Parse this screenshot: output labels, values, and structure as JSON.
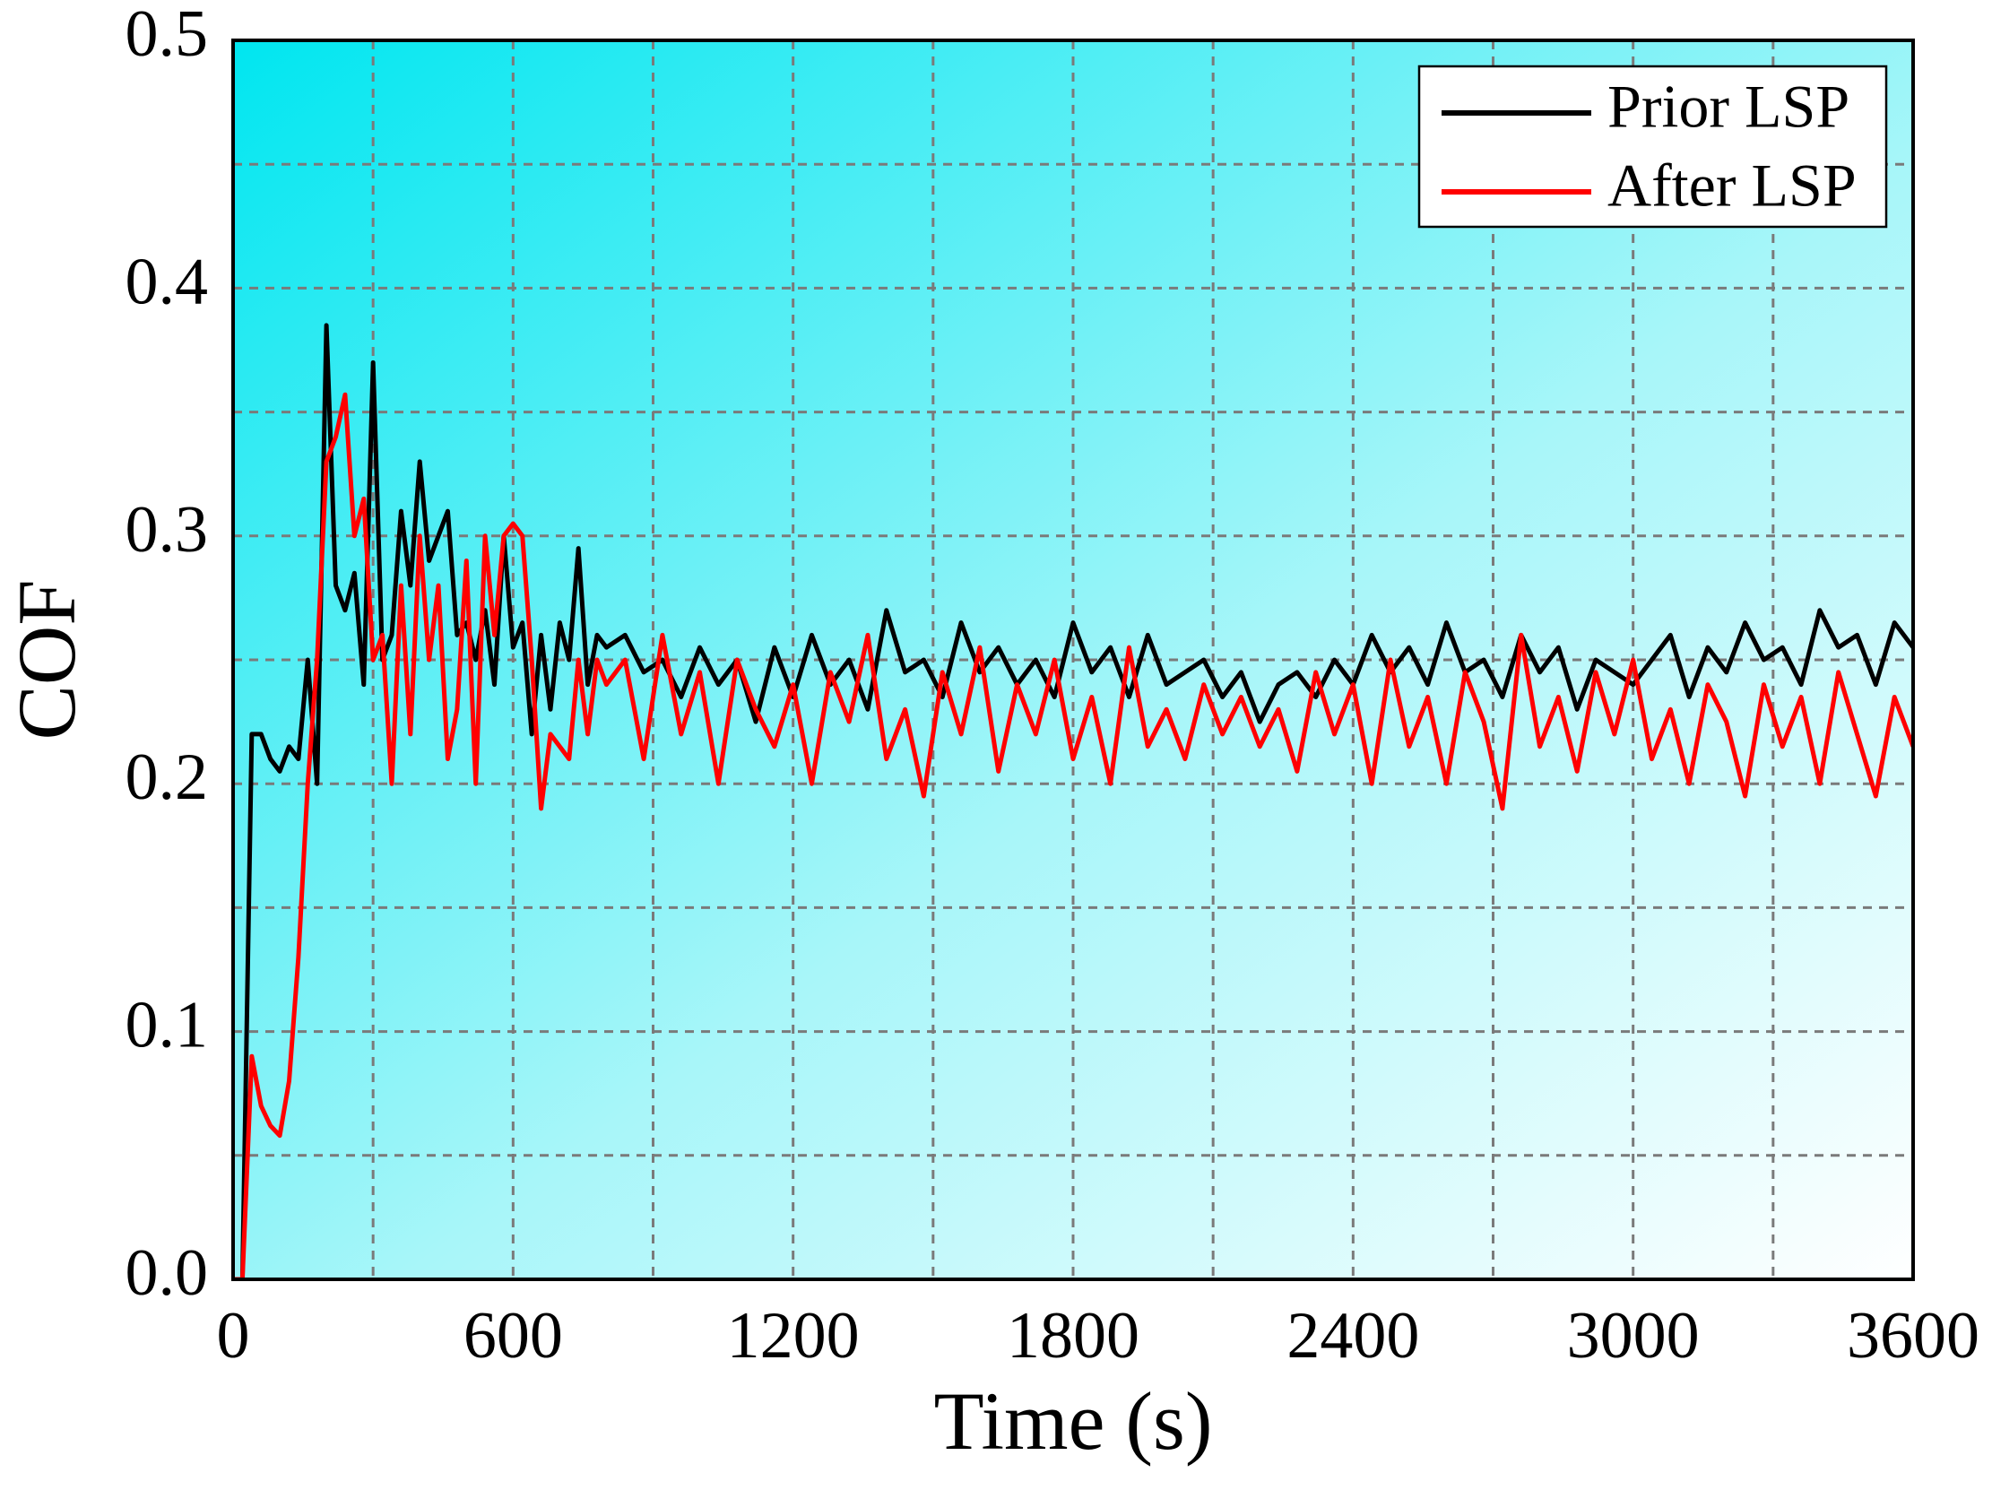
{
  "chart_data": {
    "type": "line",
    "x_label": "Time (s)",
    "y_label": "COF",
    "xlim": [
      0,
      3600
    ],
    "xticks": [
      0,
      600,
      1200,
      1800,
      2400,
      3000,
      3600
    ],
    "x_minor_ticks": [
      300,
      900,
      1500,
      2100,
      2700,
      3300
    ],
    "ylim": [
      0,
      0.5
    ],
    "yticks": [
      {
        "value": 0,
        "label": "0.0"
      },
      0.1,
      0.2,
      0.3,
      0.4,
      0.5
    ],
    "y_minor_ticks": [
      0.05,
      0.15,
      0.25,
      0.35,
      0.45
    ],
    "grid": true,
    "legend": "upper right",
    "x": [
      0,
      20,
      40,
      60,
      80,
      100,
      120,
      140,
      160,
      180,
      200,
      220,
      240,
      260,
      280,
      300,
      320,
      340,
      360,
      380,
      400,
      420,
      440,
      460,
      480,
      500,
      520,
      540,
      560,
      580,
      600,
      620,
      640,
      660,
      680,
      700,
      720,
      740,
      760,
      780,
      800,
      840,
      880,
      920,
      960,
      1000,
      1040,
      1080,
      1120,
      1160,
      1200,
      1240,
      1280,
      1320,
      1360,
      1400,
      1440,
      1480,
      1520,
      1560,
      1600,
      1640,
      1680,
      1720,
      1760,
      1800,
      1840,
      1880,
      1920,
      1960,
      2000,
      2040,
      2080,
      2120,
      2160,
      2200,
      2240,
      2280,
      2320,
      2360,
      2400,
      2440,
      2480,
      2520,
      2560,
      2600,
      2640,
      2680,
      2720,
      2760,
      2800,
      2840,
      2880,
      2920,
      2960,
      3000,
      3040,
      3080,
      3120,
      3160,
      3200,
      3240,
      3280,
      3320,
      3360,
      3400,
      3440,
      3480,
      3520,
      3560,
      3600
    ],
    "series": [
      {
        "name": "Prior LSP",
        "color": "#000000",
        "values": [
          0,
          0,
          0.22,
          0.22,
          0.21,
          0.205,
          0.215,
          0.21,
          0.25,
          0.2,
          0.385,
          0.28,
          0.27,
          0.285,
          0.24,
          0.37,
          0.25,
          0.26,
          0.31,
          0.28,
          0.33,
          0.29,
          0.3,
          0.31,
          0.26,
          0.265,
          0.25,
          0.27,
          0.24,
          0.3,
          0.255,
          0.265,
          0.22,
          0.26,
          0.23,
          0.265,
          0.25,
          0.295,
          0.24,
          0.26,
          0.255,
          0.26,
          0.245,
          0.25,
          0.235,
          0.255,
          0.24,
          0.25,
          0.225,
          0.255,
          0.235,
          0.26,
          0.24,
          0.25,
          0.23,
          0.27,
          0.245,
          0.25,
          0.235,
          0.265,
          0.245,
          0.255,
          0.24,
          0.25,
          0.235,
          0.265,
          0.245,
          0.255,
          0.235,
          0.26,
          0.24,
          0.245,
          0.25,
          0.235,
          0.245,
          0.225,
          0.24,
          0.245,
          0.235,
          0.25,
          0.24,
          0.26,
          0.245,
          0.255,
          0.24,
          0.265,
          0.245,
          0.25,
          0.235,
          0.26,
          0.245,
          0.255,
          0.23,
          0.25,
          0.245,
          0.24,
          0.25,
          0.26,
          0.235,
          0.255,
          0.245,
          0.265,
          0.25,
          0.255,
          0.24,
          0.27,
          0.255,
          0.26,
          0.24,
          0.265,
          0.255
        ]
      },
      {
        "name": "After LSP",
        "color": "#ff0000",
        "values": [
          0,
          0,
          0.09,
          0.07,
          0.062,
          0.058,
          0.08,
          0.13,
          0.2,
          0.25,
          0.33,
          0.34,
          0.357,
          0.3,
          0.315,
          0.25,
          0.26,
          0.2,
          0.28,
          0.22,
          0.3,
          0.25,
          0.28,
          0.21,
          0.23,
          0.29,
          0.2,
          0.3,
          0.26,
          0.3,
          0.305,
          0.3,
          0.25,
          0.19,
          0.22,
          0.215,
          0.21,
          0.25,
          0.22,
          0.25,
          0.24,
          0.25,
          0.21,
          0.26,
          0.22,
          0.245,
          0.2,
          0.25,
          0.23,
          0.215,
          0.24,
          0.2,
          0.245,
          0.225,
          0.26,
          0.21,
          0.23,
          0.195,
          0.245,
          0.22,
          0.255,
          0.205,
          0.24,
          0.22,
          0.25,
          0.21,
          0.235,
          0.2,
          0.255,
          0.215,
          0.23,
          0.21,
          0.24,
          0.22,
          0.235,
          0.215,
          0.23,
          0.205,
          0.245,
          0.22,
          0.24,
          0.2,
          0.25,
          0.215,
          0.235,
          0.2,
          0.245,
          0.225,
          0.19,
          0.26,
          0.215,
          0.235,
          0.205,
          0.245,
          0.22,
          0.25,
          0.21,
          0.23,
          0.2,
          0.24,
          0.225,
          0.195,
          0.24,
          0.215,
          0.235,
          0.2,
          0.245,
          0.22,
          0.195,
          0.235,
          0.215
        ]
      }
    ]
  }
}
